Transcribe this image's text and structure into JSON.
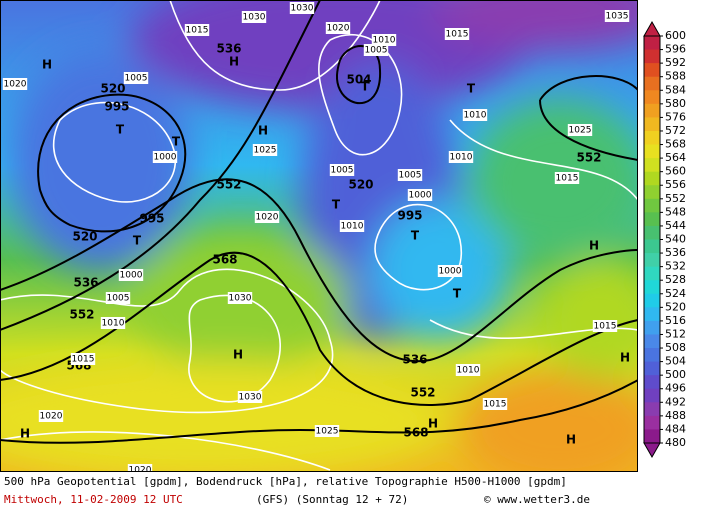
{
  "map": {
    "labels": [
      "H",
      "H",
      "H",
      "H",
      "H",
      "H",
      "H",
      "H",
      "H",
      "T",
      "T",
      "T",
      "T",
      "T",
      "T",
      "T",
      "T",
      "520",
      "520",
      "520",
      "536",
      "536",
      "536",
      "552",
      "552",
      "552",
      "552",
      "568",
      "568",
      "568",
      "504",
      "1030",
      "1030",
      "1020",
      "1015",
      "1010",
      "1005",
      "1005",
      "995",
      "1000",
      "1025",
      "1005",
      "1005",
      "1000",
      "995",
      "1000",
      "1010",
      "1020",
      "1030",
      "1030",
      "1025",
      "1020",
      "1015",
      "1010",
      "1005",
      "1000",
      "995",
      "1010",
      "1010",
      "1025",
      "1015",
      "1015",
      "1015",
      "1010",
      "1035",
      "1015",
      "1020",
      "1020"
    ]
  },
  "colorbar": {
    "ticks": [
      600,
      596,
      592,
      588,
      584,
      580,
      576,
      572,
      568,
      564,
      560,
      556,
      552,
      548,
      544,
      540,
      536,
      532,
      528,
      524,
      520,
      516,
      512,
      508,
      504,
      500,
      496,
      492,
      488,
      484,
      480
    ],
    "colors": [
      "#c02044",
      "#d03030",
      "#e05020",
      "#e87020",
      "#f08820",
      "#f0a020",
      "#f0b820",
      "#f0d020",
      "#e8e020",
      "#d0e020",
      "#b0d820",
      "#90d030",
      "#70c840",
      "#58c050",
      "#48c070",
      "#3cc890",
      "#40d0a8",
      "#30d8c0",
      "#20d8d8",
      "#20cce8",
      "#30b8f0",
      "#40a0ee",
      "#4a88e8",
      "#4a74e0",
      "#5060d8",
      "#5f4ccc",
      "#7040c0",
      "#8a3cb0",
      "#9a2fa0",
      "#8b1a8b"
    ]
  },
  "footer": {
    "description": "500 hPa Geopotential [gpdm], Bodendruck [hPa], relative Topographie H500-H1000 [gpdm]",
    "date": "Mittwoch, 11-02-2009  12 UTC",
    "model": "(GFS)  (Sonntag 12 + 72)",
    "source": "© www.wetter3.de"
  }
}
